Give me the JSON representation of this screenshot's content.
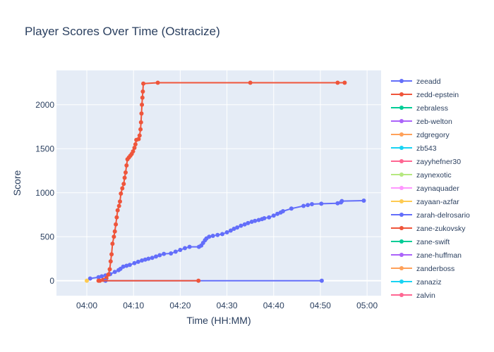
{
  "chart_data": {
    "type": "line",
    "title": "Player Scores Over Time (Ostracize)",
    "xlabel": "Time (HH:MM)",
    "ylabel": "Score",
    "x_unit": "minutes after 04:00",
    "xlim": [
      -6.5,
      63
    ],
    "ylim": [
      -170,
      2390
    ],
    "x_ticks": [
      {
        "value": 0,
        "label": "04:00"
      },
      {
        "value": 10,
        "label": "04:10"
      },
      {
        "value": 20,
        "label": "04:20"
      },
      {
        "value": 30,
        "label": "04:30"
      },
      {
        "value": 40,
        "label": "04:40"
      },
      {
        "value": 50,
        "label": "04:50"
      },
      {
        "value": 60,
        "label": "05:00"
      }
    ],
    "y_ticks": [
      {
        "value": 0,
        "label": "0"
      },
      {
        "value": 500,
        "label": "500"
      },
      {
        "value": 1000,
        "label": "1000"
      },
      {
        "value": 1500,
        "label": "1500"
      },
      {
        "value": 2000,
        "label": "2000"
      }
    ],
    "grid": true,
    "legend_position": "right",
    "colors": {
      "background": "#e5ecf6",
      "grid": "#ffffff",
      "text": "#2a3f5f"
    },
    "legend": [
      {
        "name": "zeeadd",
        "color": "#636efa"
      },
      {
        "name": "zedd-epstein",
        "color": "#EF553B"
      },
      {
        "name": "zebraless",
        "color": "#00cc96"
      },
      {
        "name": "zeb-welton",
        "color": "#ab63fa"
      },
      {
        "name": "zdgregory",
        "color": "#FFA15A"
      },
      {
        "name": "zb543",
        "color": "#19d3f3"
      },
      {
        "name": "zayyhefner30",
        "color": "#FF6692"
      },
      {
        "name": "zaynexotic",
        "color": "#B6E880"
      },
      {
        "name": "zaynaquader",
        "color": "#FF97FF"
      },
      {
        "name": "zayaan-azfar",
        "color": "#FECB52"
      },
      {
        "name": "zarah-delrosario",
        "color": "#636efa"
      },
      {
        "name": "zane-zukovsky",
        "color": "#EF553B"
      },
      {
        "name": "zane-swift",
        "color": "#00cc96"
      },
      {
        "name": "zane-huffman",
        "color": "#ab63fa"
      },
      {
        "name": "zanderboss",
        "color": "#FFA15A"
      },
      {
        "name": "zanaziz",
        "color": "#19d3f3"
      },
      {
        "name": "zalvin",
        "color": "#FF6692"
      }
    ],
    "series": [
      {
        "name": "zeeadd",
        "color": "#636efa",
        "points": [
          [
            0.7,
            25
          ],
          [
            2.5,
            40
          ],
          [
            3.2,
            50
          ],
          [
            4.0,
            60
          ],
          [
            5.0,
            75
          ],
          [
            6.0,
            100
          ],
          [
            6.8,
            120
          ],
          [
            7.2,
            135
          ],
          [
            7.8,
            160
          ],
          [
            8.5,
            170
          ],
          [
            9.2,
            180
          ],
          [
            10.2,
            200
          ],
          [
            11.0,
            215
          ],
          [
            11.8,
            230
          ],
          [
            12.5,
            240
          ],
          [
            13.2,
            250
          ],
          [
            14.0,
            260
          ],
          [
            14.8,
            275
          ],
          [
            15.6,
            290
          ],
          [
            16.5,
            305
          ],
          [
            18.0,
            310
          ],
          [
            19.0,
            330
          ],
          [
            20.0,
            350
          ],
          [
            21.0,
            370
          ],
          [
            22.0,
            385
          ],
          [
            24.0,
            385
          ],
          [
            24.5,
            400
          ],
          [
            24.9,
            430
          ],
          [
            25.3,
            460
          ],
          [
            25.6,
            480
          ],
          [
            26.2,
            500
          ],
          [
            27.0,
            510
          ],
          [
            28.0,
            520
          ],
          [
            29.0,
            530
          ],
          [
            30.0,
            550
          ],
          [
            30.8,
            570
          ],
          [
            31.5,
            590
          ],
          [
            32.2,
            605
          ],
          [
            33.0,
            625
          ],
          [
            33.8,
            640
          ],
          [
            34.5,
            655
          ],
          [
            35.3,
            670
          ],
          [
            36.0,
            680
          ],
          [
            36.8,
            690
          ],
          [
            37.5,
            700
          ],
          [
            38.0,
            710
          ],
          [
            39.0,
            720
          ],
          [
            40.0,
            740
          ],
          [
            40.8,
            760
          ],
          [
            41.5,
            775
          ],
          [
            42.0,
            790
          ],
          [
            43.8,
            820
          ],
          [
            46.4,
            850
          ],
          [
            47.3,
            860
          ],
          [
            48.2,
            870
          ],
          [
            50.2,
            875
          ],
          [
            53.7,
            880
          ],
          [
            54.4,
            890
          ],
          [
            54.6,
            905
          ],
          [
            59.3,
            910
          ]
        ]
      },
      {
        "name": "zedd-epstein",
        "color": "#EF553B",
        "points": [
          [
            2.5,
            0
          ],
          [
            3.5,
            10
          ],
          [
            4.2,
            30
          ],
          [
            4.6,
            70
          ],
          [
            4.9,
            130
          ],
          [
            5.1,
            220
          ],
          [
            5.3,
            300
          ],
          [
            5.5,
            420
          ],
          [
            5.8,
            500
          ],
          [
            6.0,
            560
          ],
          [
            6.2,
            640
          ],
          [
            6.4,
            720
          ],
          [
            6.6,
            800
          ],
          [
            6.9,
            850
          ],
          [
            7.1,
            900
          ],
          [
            7.3,
            990
          ],
          [
            7.6,
            1050
          ],
          [
            7.9,
            1100
          ],
          [
            8.1,
            1170
          ],
          [
            8.3,
            1230
          ],
          [
            8.5,
            1310
          ],
          [
            8.7,
            1380
          ],
          [
            9.0,
            1400
          ],
          [
            9.3,
            1420
          ],
          [
            9.6,
            1440
          ],
          [
            9.9,
            1470
          ],
          [
            10.2,
            1510
          ],
          [
            10.4,
            1550
          ],
          [
            10.6,
            1600
          ],
          [
            11.1,
            1610
          ],
          [
            11.3,
            1650
          ],
          [
            11.5,
            1720
          ],
          [
            11.6,
            1800
          ],
          [
            11.7,
            1900
          ],
          [
            11.8,
            2000
          ],
          [
            11.9,
            2080
          ],
          [
            12.0,
            2150
          ],
          [
            12.1,
            2240
          ],
          [
            15.2,
            2250
          ],
          [
            35.0,
            2250
          ],
          [
            53.7,
            2250
          ],
          [
            55.2,
            2250
          ]
        ]
      },
      {
        "name": "zarah-delrosario",
        "color": "#636efa",
        "points": [
          [
            4.0,
            0
          ],
          [
            50.3,
            0
          ]
        ]
      },
      {
        "name": "zane-zukovsky",
        "color": "#EF553B",
        "points": [
          [
            2.8,
            0
          ],
          [
            23.9,
            0
          ]
        ]
      },
      {
        "name": "zayaan-azfar",
        "color": "#FECB52",
        "points": [
          [
            0.0,
            0
          ]
        ]
      }
    ]
  }
}
